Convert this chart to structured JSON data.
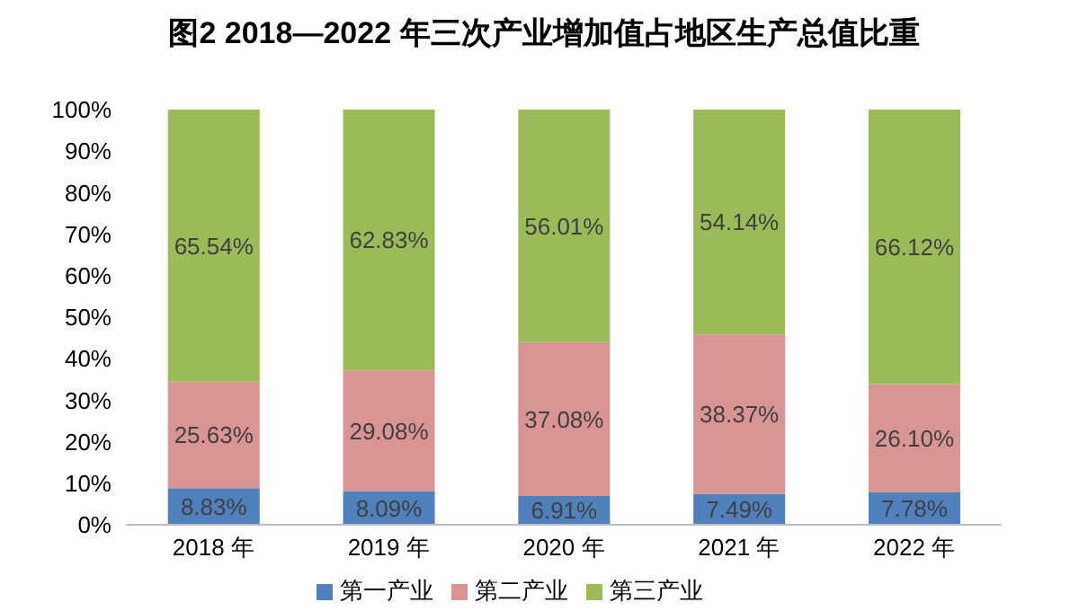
{
  "chart_data": {
    "type": "bar",
    "title": "图2 2018—2022 年三次产业增加值占地区生产总值比重",
    "categories": [
      "2018 年",
      "2019 年",
      "2020 年",
      "2021 年",
      "2022 年"
    ],
    "stacked": true,
    "ylim": [
      0,
      100
    ],
    "yticks": [
      {
        "value": 0,
        "label": "0%"
      },
      {
        "value": 10,
        "label": "10%"
      },
      {
        "value": 20,
        "label": "20%"
      },
      {
        "value": 30,
        "label": "30%"
      },
      {
        "value": 40,
        "label": "40%"
      },
      {
        "value": 50,
        "label": "50%"
      },
      {
        "value": 60,
        "label": "60%"
      },
      {
        "value": 70,
        "label": "70%"
      },
      {
        "value": 80,
        "label": "80%"
      },
      {
        "value": 90,
        "label": "90%"
      },
      {
        "value": 100,
        "label": "100%"
      }
    ],
    "grid": false,
    "legend": "bottom",
    "series": [
      {
        "name": "第一产业",
        "color": "#4f81bd",
        "values": [
          8.83,
          8.09,
          6.91,
          7.49,
          7.78
        ],
        "value_labels": [
          "8.83%",
          "8.09%",
          "6.91%",
          "7.49%",
          "7.78%"
        ]
      },
      {
        "name": "第二产业",
        "color": "#d99594",
        "values": [
          25.63,
          29.08,
          37.08,
          38.37,
          26.1
        ],
        "value_labels": [
          "25.63%",
          "29.08%",
          "37.08%",
          "38.37%",
          "26.10%"
        ]
      },
      {
        "name": "第三产业",
        "color": "#9bbb59",
        "values": [
          65.54,
          62.83,
          56.01,
          54.14,
          66.12
        ],
        "value_labels": [
          "65.54%",
          "62.83%",
          "56.01%",
          "54.14%",
          "66.12%"
        ]
      }
    ]
  }
}
